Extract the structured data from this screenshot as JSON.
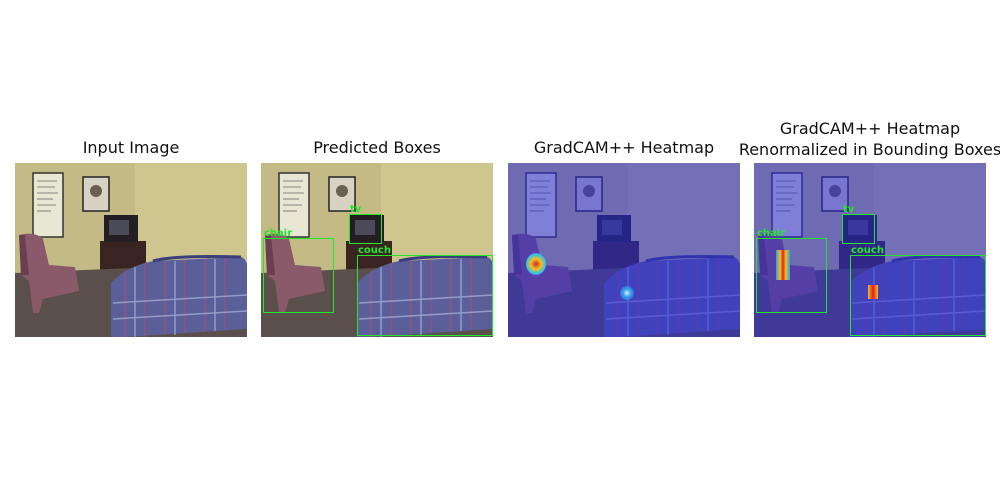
{
  "panels": [
    {
      "title": "Input Image"
    },
    {
      "title": "Predicted Boxes"
    },
    {
      "title": "GradCAM++ Heatmap"
    },
    {
      "title_line1": "GradCAM++ Heatmap",
      "title_line2": "Renormalized in Bounding Boxes"
    }
  ],
  "detections": [
    {
      "label": "chair"
    },
    {
      "label": "tv"
    },
    {
      "label": "couch"
    }
  ],
  "colors": {
    "box": "#22e82a",
    "heat_overlay": "#2a2ad8",
    "wall": "#c9c088",
    "couch": "#5a5f9a",
    "chair": "#8a5a6a"
  }
}
